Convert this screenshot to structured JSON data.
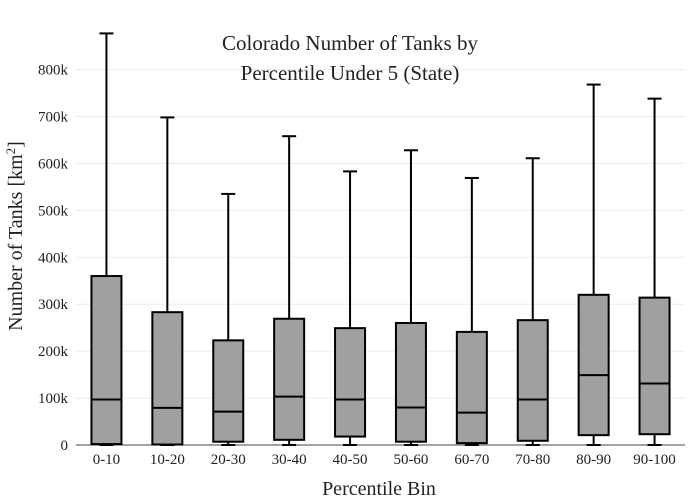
{
  "chart_data": {
    "type": "box",
    "title_lines": [
      "Colorado Number of Tanks by",
      "Percentile Under 5 (State)"
    ],
    "xlabel": "Percentile Bin",
    "ylabel_main": "Number of Tanks  [km",
    "ylabel_sup": "2",
    "ylabel_end": "]",
    "ylim": [
      0,
      880000
    ],
    "yticks": [
      0,
      100000,
      200000,
      300000,
      400000,
      500000,
      600000,
      700000,
      800000
    ],
    "ytick_labels": [
      "0",
      "100k",
      "200k",
      "300k",
      "400k",
      "500k",
      "600k",
      "700k",
      "800k"
    ],
    "grid": true,
    "categories": [
      "0-10",
      "10-20",
      "20-30",
      "30-40",
      "40-50",
      "50-60",
      "60-70",
      "70-80",
      "80-90",
      "90-100"
    ],
    "boxes": [
      {
        "min": 0,
        "q1": 2000,
        "median": 97000,
        "q3": 360000,
        "max": 877000
      },
      {
        "min": 0,
        "q1": 1000,
        "median": 79000,
        "q3": 283000,
        "max": 698000
      },
      {
        "min": 0,
        "q1": 7000,
        "median": 71000,
        "q3": 223000,
        "max": 535000
      },
      {
        "min": 0,
        "q1": 11000,
        "median": 103000,
        "q3": 269000,
        "max": 658000
      },
      {
        "min": 0,
        "q1": 18000,
        "median": 97000,
        "q3": 249000,
        "max": 583000
      },
      {
        "min": 0,
        "q1": 7000,
        "median": 80000,
        "q3": 260000,
        "max": 628000
      },
      {
        "min": 0,
        "q1": 4000,
        "median": 69000,
        "q3": 241000,
        "max": 569000
      },
      {
        "min": 0,
        "q1": 9000,
        "median": 97000,
        "q3": 266000,
        "max": 611000
      },
      {
        "min": 0,
        "q1": 21000,
        "median": 149000,
        "q3": 320000,
        "max": 768000
      },
      {
        "min": 0,
        "q1": 23000,
        "median": 131000,
        "q3": 314000,
        "max": 738000
      }
    ]
  }
}
